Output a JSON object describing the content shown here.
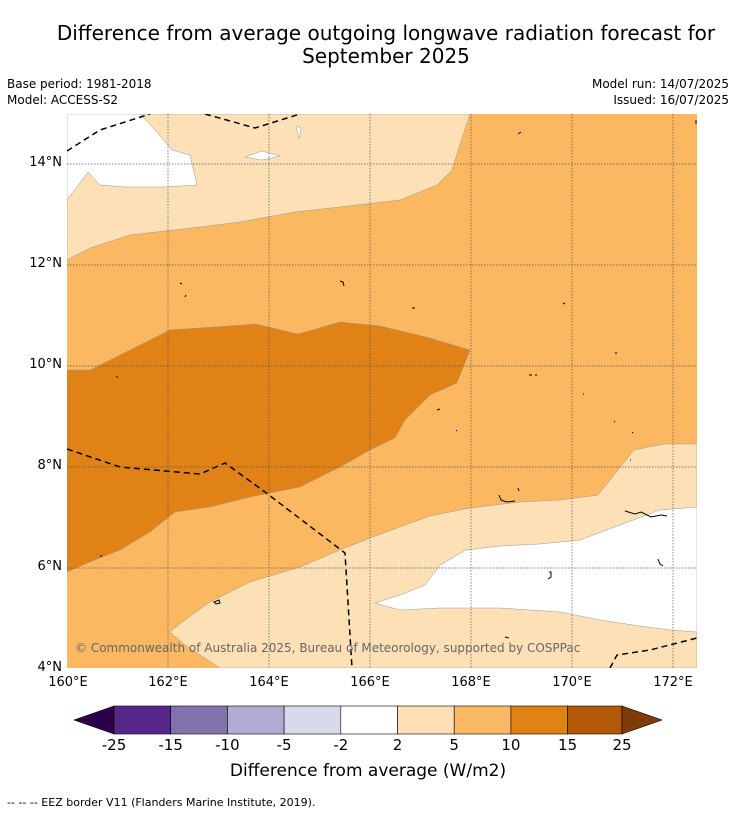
{
  "title": "Difference from average outgoing longwave radiation forecast for September 2025",
  "title_line1": "Difference from average outgoing longwave radiation forecast for",
  "title_line2": "September 2025",
  "meta": {
    "base_period": "Base period: 1981-2018",
    "model": "Model: ACCESS-S2",
    "model_run": "Model run: 14/07/2025",
    "issued": "Issued: 16/07/2025"
  },
  "map": {
    "lat_labels": [
      "14°N",
      "12°N",
      "10°N",
      "8°N",
      "6°N",
      "4°N"
    ],
    "lon_labels": [
      "160°E",
      "162°E",
      "164°E",
      "166°E",
      "168°E",
      "170°E",
      "172°E"
    ],
    "copyright": "© Commonwealth of Australia 2025, Bureau of Meteorology, supported by COSPPac",
    "colors": {
      "white": "#ffffff",
      "light": "#fde0b5",
      "medium": "#fbb861",
      "strong": "#e08216",
      "very_strong": "#b35806"
    }
  },
  "colorbar": {
    "ticks": [
      "-25",
      "-15",
      "-10",
      "-5",
      "-2",
      "2",
      "5",
      "10",
      "15",
      "25"
    ],
    "colors": [
      "#2d004b",
      "#542788",
      "#8073ac",
      "#b2abd2",
      "#d8daeb",
      "#ffffff",
      "#fee0b6",
      "#fdb863",
      "#e08214",
      "#b35806",
      "#7f3b08"
    ],
    "label": "Difference from average (W/m2)"
  },
  "footnote": "--  --  -- EEZ border V11 (Flanders Marine Institute, 2019)."
}
